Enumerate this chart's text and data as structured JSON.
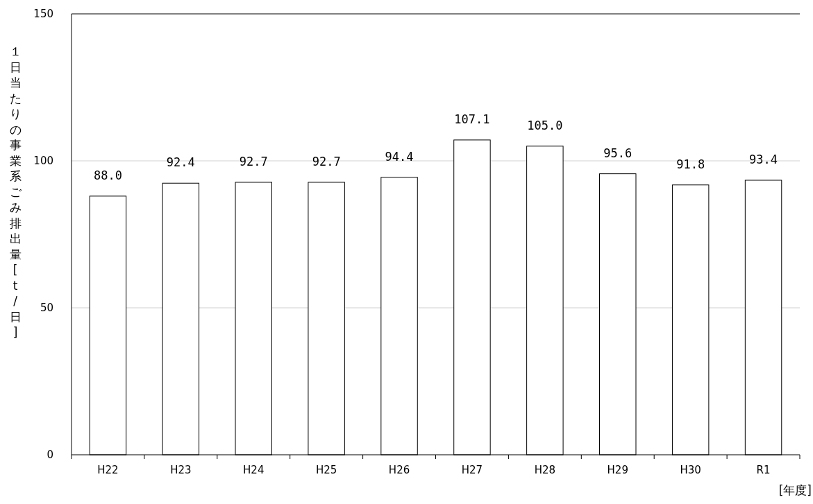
{
  "chart_data": {
    "type": "bar",
    "ylabel": "１日当たりの事業系ごみ排出量[t/日]",
    "xlabel": "[年度]",
    "categories": [
      "H22",
      "H23",
      "H24",
      "H25",
      "H26",
      "H27",
      "H28",
      "H29",
      "H30",
      "R1"
    ],
    "values": [
      88.0,
      92.4,
      92.7,
      92.7,
      94.4,
      107.1,
      105.0,
      95.6,
      91.8,
      93.4
    ],
    "value_labels": [
      "88.0",
      "92.4",
      "92.7",
      "92.7",
      "94.4",
      "107.1",
      "105.0",
      "95.6",
      "91.8",
      "93.4"
    ],
    "color": "#ffffff",
    "ylim": [
      0,
      150
    ],
    "yticks": [
      0,
      50,
      100,
      150
    ],
    "grid": "y"
  }
}
